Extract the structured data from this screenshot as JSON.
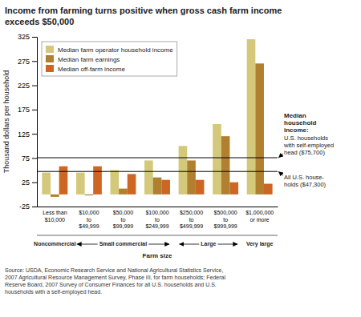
{
  "chart_data": {
    "type": "bar",
    "title": "Income from farming turns positive when gross cash farm income\nexceeds $50,000",
    "y_label": "Thousand dollars per household",
    "categories": [
      "Less than\n$10,000",
      "$10,000\nto\n$49,999",
      "$50,000\nto\n$99,999",
      "$100,000\nto\n$249,999",
      "$250,000\nto\n$499,999",
      "$500,000\nto\n$999,999",
      "$1,000,000\nor more"
    ],
    "series": [
      {
        "name": "Median farm operator household income",
        "color": "#d4c87a",
        "values": [
          45,
          45,
          50,
          70,
          100,
          145,
          320
        ]
      },
      {
        "name": "Median farm earnings",
        "color": "#b08030",
        "values": [
          -5,
          -2,
          12,
          35,
          70,
          120,
          270
        ]
      },
      {
        "name": "Median off-farm income",
        "color": "#cc6622",
        "values": [
          58,
          58,
          42,
          30,
          30,
          25,
          22
        ]
      }
    ],
    "ylim": [
      -25,
      325
    ],
    "yticks": [
      -25,
      25,
      75,
      125,
      175,
      225,
      275,
      325
    ],
    "grid": false,
    "legend": "top-left",
    "reference_title": "Median\nhousehold\nincome:",
    "reference_lines": [
      {
        "value": 75.7,
        "label": "U.S. households\nwith self-employed\nhead ($75,700)"
      },
      {
        "value": 47.3,
        "label": "All U.S. house-\nholds ($47,300)"
      }
    ],
    "category_groups": [
      {
        "label": "Noncommercial",
        "count": 1
      },
      {
        "label": "Small commercial",
        "count": 3
      },
      {
        "label": "Large",
        "count": 2
      },
      {
        "label": "Very large",
        "count": 1
      }
    ],
    "category_group_label": "Farm size",
    "source": "Source: USDA, Economic Research Service and National Agricultural Statistics Service,\n2007 Agricultural Resource Management Survey, Phase III, for farm households; Federal\nReserve Board, 2007 Survey of Consumer Finances for all U.S. households and U.S.\nhouseholds with a self-employed head."
  }
}
